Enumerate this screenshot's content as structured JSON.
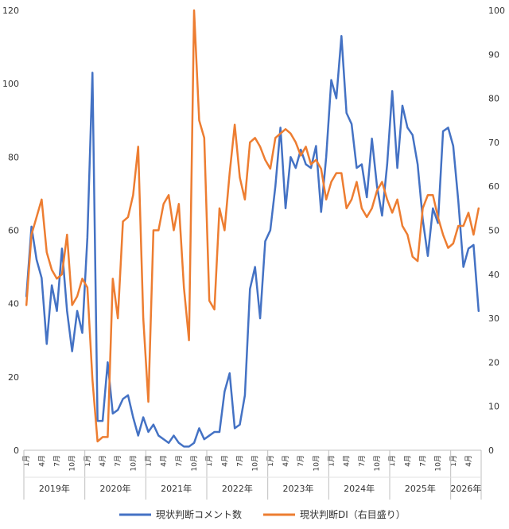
{
  "chart_data": {
    "type": "line",
    "series": [
      {
        "name": "現状判断コメント数",
        "axis": "left",
        "color": "#4472C4",
        "values": [
          42,
          61,
          52,
          47,
          29,
          45,
          38,
          55,
          38,
          27,
          38,
          32,
          58,
          103,
          8,
          8,
          24,
          10,
          11,
          14,
          15,
          9,
          4,
          9,
          5,
          7,
          4,
          3,
          2,
          4,
          2,
          1,
          1,
          2,
          6,
          3,
          4,
          5,
          5,
          16,
          21,
          6,
          7,
          15,
          44,
          50,
          36,
          57,
          60,
          72,
          88,
          66,
          80,
          77,
          82,
          78,
          77,
          83,
          65,
          80,
          101,
          96,
          113,
          92,
          89,
          77,
          78,
          69,
          85,
          72,
          64,
          78,
          98,
          77,
          94,
          88,
          86,
          78,
          63,
          53,
          66,
          62,
          87,
          88,
          83,
          68,
          50,
          55,
          56,
          38
        ]
      },
      {
        "name": "現状判断DI（右目盛り）",
        "axis": "right",
        "color": "#ED7D31",
        "values": [
          33,
          49,
          53,
          57,
          45,
          41,
          39,
          40,
          49,
          33,
          35,
          39,
          37,
          16,
          2,
          3,
          3,
          39,
          30,
          52,
          53,
          58,
          69,
          30,
          11,
          50,
          50,
          56,
          58,
          50,
          56,
          37,
          25,
          100,
          75,
          71,
          34,
          32,
          55,
          50,
          63,
          74,
          62,
          57,
          70,
          71,
          69,
          66,
          64,
          71,
          72,
          73,
          72,
          70,
          67,
          69,
          65,
          66,
          64,
          57,
          61,
          63,
          63,
          55,
          57,
          61,
          55,
          53,
          55,
          59,
          61,
          57,
          54,
          57,
          51,
          49,
          44,
          43,
          55,
          58,
          58,
          53,
          49,
          46,
          47,
          51,
          51,
          54,
          49,
          55
        ]
      }
    ],
    "x_label_months": [
      "1月",
      "4月",
      "7月",
      "10月"
    ],
    "years": [
      "2019年",
      "2020年",
      "2021年",
      "2022年",
      "2023年",
      "2024年",
      "2025年",
      "2026年"
    ],
    "y_left": {
      "min": 0,
      "max": 120,
      "ticks": [
        0,
        20,
        40,
        60,
        80,
        100,
        120
      ]
    },
    "y_right": {
      "min": 0,
      "max": 100,
      "ticks": [
        0,
        10,
        20,
        30,
        40,
        50,
        60,
        70,
        80,
        90,
        100
      ]
    },
    "grid": false,
    "legend_position": "bottom"
  }
}
